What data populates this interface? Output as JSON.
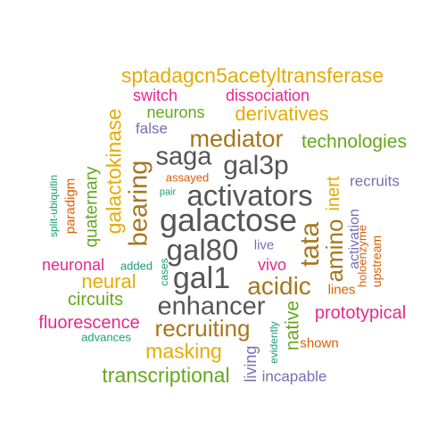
{
  "palette": {
    "gray": "#555555",
    "brown": "#a6761d",
    "gold": "#e6ab02",
    "magenta": "#e7298a",
    "green": "#66a61e",
    "purple": "#7570b3",
    "orange": "#d95f02",
    "teal": "#1b9e77"
  },
  "words": [
    {
      "id": "sptadagcn5acetyltransferase",
      "text": "sptadagcn5acetyltransferase",
      "color": "#e6ab02"
    },
    {
      "id": "switch",
      "text": "switch",
      "color": "#e7298a"
    },
    {
      "id": "dissociation",
      "text": "dissociation",
      "color": "#e7298a"
    },
    {
      "id": "neurons",
      "text": "neurons",
      "color": "#66a61e"
    },
    {
      "id": "derivatives",
      "text": "derivatives",
      "color": "#e6ab02"
    },
    {
      "id": "false",
      "text": "false",
      "color": "#7570b3"
    },
    {
      "id": "mediator",
      "text": "mediator",
      "color": "#a6761d"
    },
    {
      "id": "technologies",
      "text": "technologies",
      "color": "#66a61e"
    },
    {
      "id": "saga",
      "text": "saga",
      "color": "#555555"
    },
    {
      "id": "gal3p",
      "text": "gal3p",
      "color": "#555555"
    },
    {
      "id": "assayed",
      "text": "assayed",
      "color": "#d95f02"
    },
    {
      "id": "pair",
      "text": "pair",
      "color": "#1b9e77"
    },
    {
      "id": "activators",
      "text": "activators",
      "color": "#555555"
    },
    {
      "id": "recruits",
      "text": "recruits",
      "color": "#7570b3"
    },
    {
      "id": "galactose",
      "text": "galactose",
      "color": "#555555"
    },
    {
      "id": "gal80",
      "text": "gal80",
      "color": "#555555"
    },
    {
      "id": "live",
      "text": "live",
      "color": "#7570b3"
    },
    {
      "id": "gal1",
      "text": "gal1",
      "color": "#555555"
    },
    {
      "id": "vivo",
      "text": "vivo",
      "color": "#e7298a"
    },
    {
      "id": "neuronal",
      "text": "neuronal",
      "color": "#e7298a"
    },
    {
      "id": "added",
      "text": "added",
      "color": "#1b9e77"
    },
    {
      "id": "neural",
      "text": "neural",
      "color": "#e6ab02"
    },
    {
      "id": "acidic",
      "text": "acidic",
      "color": "#a6761d"
    },
    {
      "id": "lines",
      "text": "lines",
      "color": "#d95f02"
    },
    {
      "id": "circuits",
      "text": "circuits",
      "color": "#66a61e"
    },
    {
      "id": "enhancer",
      "text": "enhancer",
      "color": "#555555"
    },
    {
      "id": "prototypical",
      "text": "prototypical",
      "color": "#e7298a"
    },
    {
      "id": "fluorescence",
      "text": "fluorescence",
      "color": "#e7298a"
    },
    {
      "id": "recruiting",
      "text": "recruiting",
      "color": "#a6761d"
    },
    {
      "id": "advances",
      "text": "advances",
      "color": "#1b9e77"
    },
    {
      "id": "shown",
      "text": "shown",
      "color": "#d95f02"
    },
    {
      "id": "masking",
      "text": "masking",
      "color": "#e6ab02"
    },
    {
      "id": "transcriptional",
      "text": "transcriptional",
      "color": "#66a61e"
    },
    {
      "id": "incapable",
      "text": "incapable",
      "color": "#7570b3"
    },
    {
      "id": "galactokinase",
      "text": "galactokinase",
      "color": "#e6ab02"
    },
    {
      "id": "bearing",
      "text": "bearing",
      "color": "#a6761d"
    },
    {
      "id": "quaternary",
      "text": "quaternary",
      "color": "#66a61e"
    },
    {
      "id": "paradigm",
      "text": "paradigm",
      "color": "#d95f02"
    },
    {
      "id": "split-ubiquitin",
      "text": "split-ubiquitin",
      "color": "#1b9e77"
    },
    {
      "id": "inert",
      "text": "inert",
      "color": "#e6ab02"
    },
    {
      "id": "tata",
      "text": "tata",
      "color": "#a6761d"
    },
    {
      "id": "amino",
      "text": "amino",
      "color": "#a6761d"
    },
    {
      "id": "activation",
      "text": "activation",
      "color": "#7570b3"
    },
    {
      "id": "holoenzyme",
      "text": "holoenzyme",
      "color": "#d95f02"
    },
    {
      "id": "upstream",
      "text": "upstream",
      "color": "#d95f02"
    },
    {
      "id": "cases",
      "text": "cases",
      "color": "#1b9e77"
    },
    {
      "id": "native",
      "text": "native",
      "color": "#66a61e"
    },
    {
      "id": "living",
      "text": "living",
      "color": "#7570b3"
    },
    {
      "id": "evidently",
      "text": "evidently",
      "color": "#1b9e77"
    }
  ]
}
